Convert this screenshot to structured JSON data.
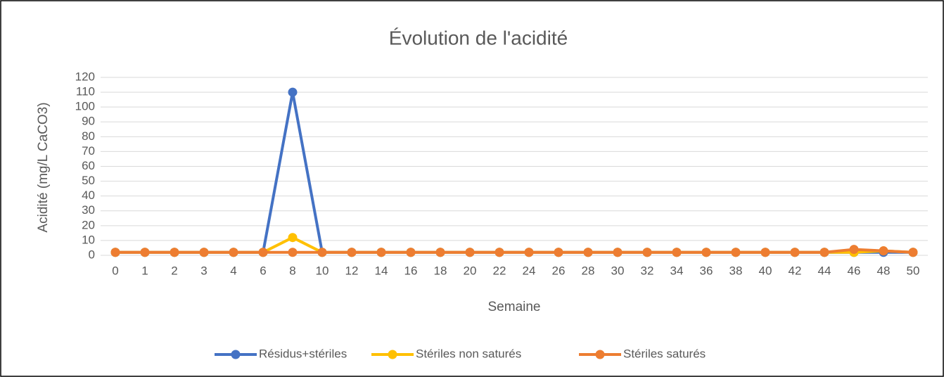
{
  "chart_data": {
    "type": "line",
    "title": "Évolution de l'acidité",
    "x_label": "Semaine",
    "y_label": "Acidité (mg/L CaCO3)",
    "categories": [
      "0",
      "1",
      "2",
      "3",
      "4",
      "6",
      "8",
      "10",
      "12",
      "14",
      "16",
      "18",
      "20",
      "22",
      "24",
      "26",
      "28",
      "30",
      "32",
      "34",
      "36",
      "38",
      "40",
      "42",
      "44",
      "46",
      "48",
      "50"
    ],
    "series": [
      {
        "name": "Résidus+stériles",
        "color": "#4472c4",
        "values": [
          2,
          2,
          2,
          2,
          2,
          2,
          110,
          2,
          2,
          2,
          2,
          2,
          2,
          2,
          2,
          2,
          2,
          2,
          2,
          2,
          2,
          2,
          2,
          2,
          2,
          2,
          2,
          2
        ]
      },
      {
        "name": "Stériles non saturés",
        "color": "#ffc000",
        "values": [
          2,
          2,
          2,
          2,
          2,
          2,
          12,
          2,
          2,
          2,
          2,
          2,
          2,
          2,
          2,
          2,
          2,
          2,
          2,
          2,
          2,
          2,
          2,
          2,
          2,
          2,
          3,
          2
        ]
      },
      {
        "name": "Stériles saturés",
        "color": "#ed7d31",
        "values": [
          2,
          2,
          2,
          2,
          2,
          2,
          2,
          2,
          2,
          2,
          2,
          2,
          2,
          2,
          2,
          2,
          2,
          2,
          2,
          2,
          2,
          2,
          2,
          2,
          2,
          4,
          3,
          2
        ]
      }
    ],
    "ylim": [
      0,
      120
    ],
    "yticks": [
      0,
      10,
      20,
      30,
      40,
      50,
      60,
      70,
      80,
      90,
      100,
      110,
      120
    ],
    "grid": true,
    "legend": "bottom"
  }
}
